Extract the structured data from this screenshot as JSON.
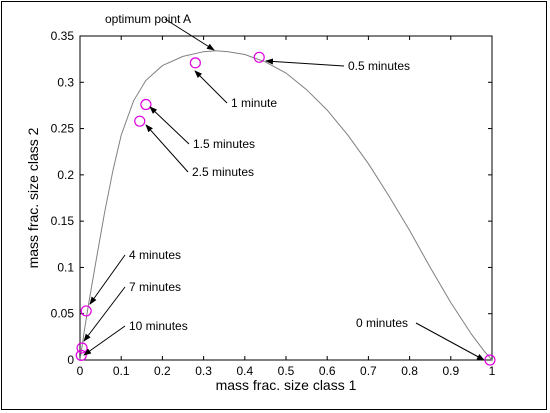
{
  "chart_data": {
    "type": "scatter",
    "title": "",
    "xlabel": "mass frac. size class 1",
    "ylabel": "mass frac. size class 2",
    "xlim": [
      0,
      1
    ],
    "ylim": [
      0,
      0.35
    ],
    "grid": false,
    "x_ticks": [
      "0",
      "0.1",
      "0.2",
      "0.3",
      "0.4",
      "0.5",
      "0.6",
      "0.7",
      "0.8",
      "0.9",
      "1"
    ],
    "y_ticks": [
      "0",
      "0.05",
      "0.1",
      "0.15",
      "0.2",
      "0.25",
      "0.3",
      "0.35"
    ],
    "curve": {
      "color": "#808080",
      "x": [
        0,
        0.005,
        0.01,
        0.02,
        0.04,
        0.06,
        0.08,
        0.1,
        0.13,
        0.16,
        0.2,
        0.25,
        0.3,
        0.33,
        0.36,
        0.4,
        0.45,
        0.5,
        0.55,
        0.6,
        0.65,
        0.7,
        0.75,
        0.8,
        0.85,
        0.9,
        0.95,
        0.98,
        1.0
      ],
      "y": [
        0,
        0.015,
        0.03,
        0.058,
        0.11,
        0.16,
        0.205,
        0.243,
        0.28,
        0.302,
        0.318,
        0.328,
        0.333,
        0.334,
        0.333,
        0.33,
        0.322,
        0.31,
        0.292,
        0.27,
        0.243,
        0.212,
        0.177,
        0.14,
        0.1,
        0.062,
        0.028,
        0.01,
        0
      ]
    },
    "points": {
      "color": "#e000e0",
      "x": [
        0.995,
        0.435,
        0.28,
        0.16,
        0.145,
        0.015,
        0.005,
        0.003
      ],
      "y": [
        0.0,
        0.327,
        0.321,
        0.276,
        0.258,
        0.053,
        0.013,
        0.005
      ]
    },
    "annotations": [
      {
        "text": "optimum point A",
        "x": 0.33,
        "y": 0.334
      },
      {
        "text": "0.5 minutes",
        "x": 0.435,
        "y": 0.327
      },
      {
        "text": "1 minute",
        "x": 0.28,
        "y": 0.321
      },
      {
        "text": "1.5 minutes",
        "x": 0.16,
        "y": 0.276
      },
      {
        "text": "2.5 minutes",
        "x": 0.145,
        "y": 0.258
      },
      {
        "text": "4 minutes",
        "x": 0.015,
        "y": 0.053
      },
      {
        "text": "7 minutes",
        "x": 0.005,
        "y": 0.013
      },
      {
        "text": "10 minutes",
        "x": 0.003,
        "y": 0.005
      },
      {
        "text": "0 minutes",
        "x": 0.995,
        "y": 0.0
      }
    ]
  }
}
